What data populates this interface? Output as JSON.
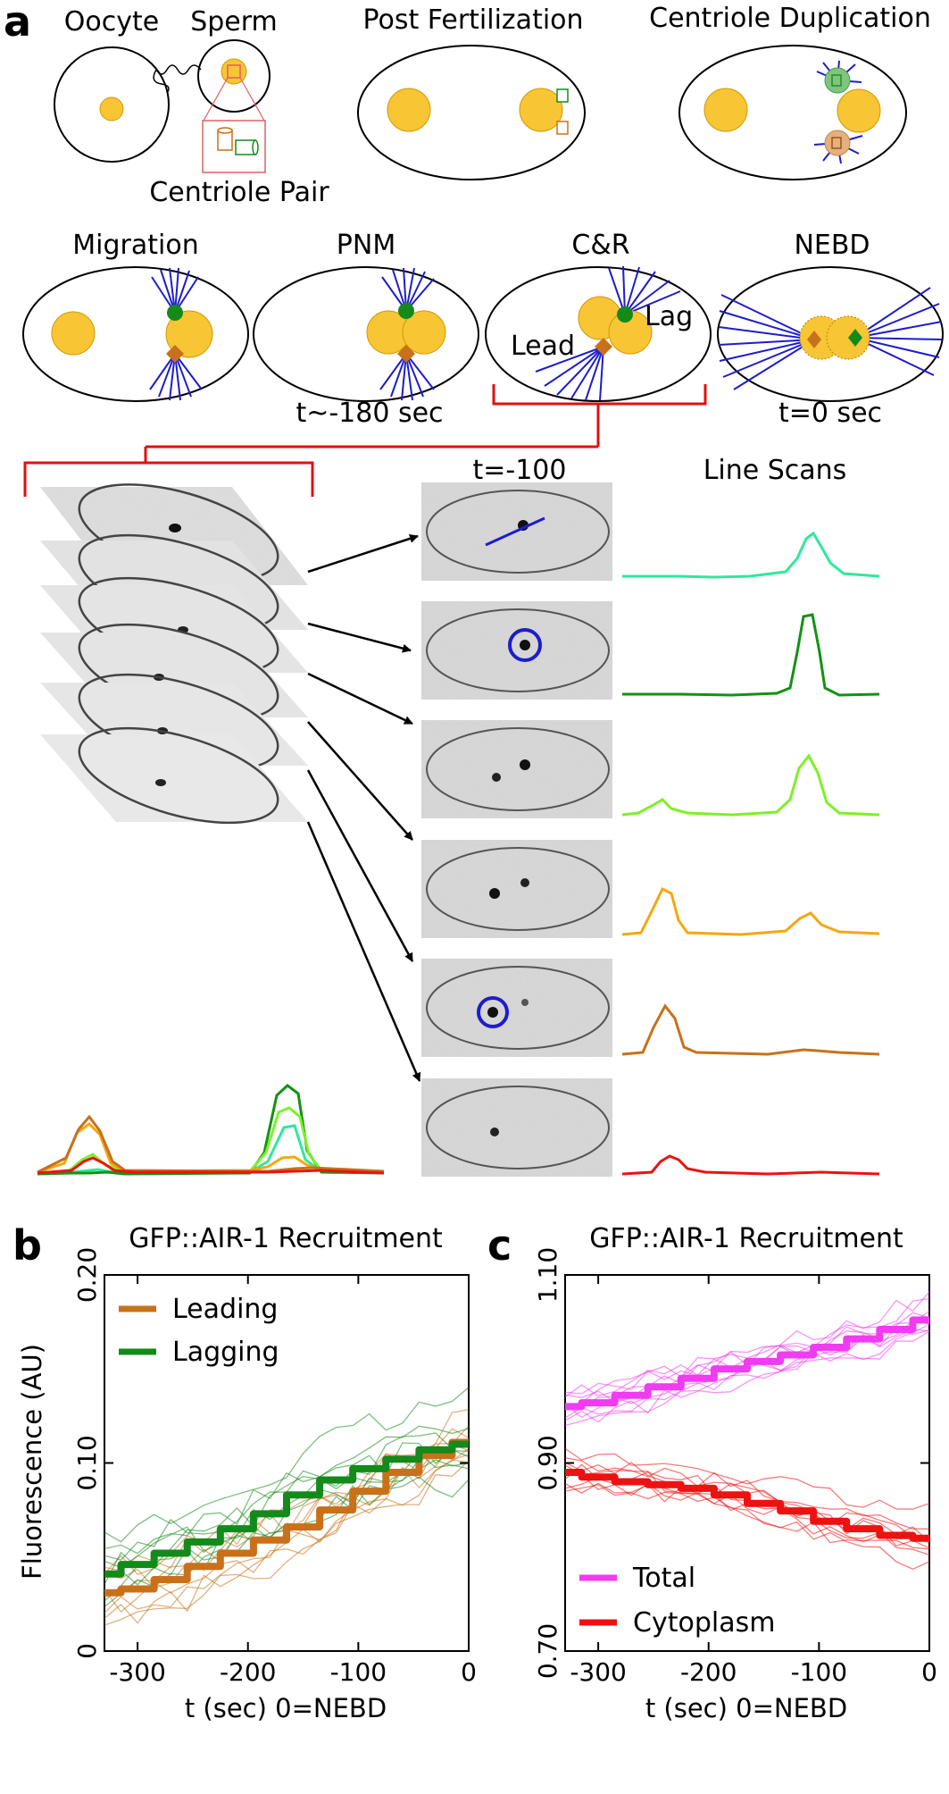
{
  "panel_a": {
    "letter": "a",
    "stages_row1": [
      "Oocyte",
      "Sperm",
      "Post Fertilization",
      "Centriole Duplication"
    ],
    "centriole_pair_label": "Centriole Pair",
    "stages_row2": [
      "Migration",
      "PNM",
      "C&R",
      "NEBD"
    ],
    "lead_label": "Lead",
    "lag_label": "Lag",
    "pnm_time": "t~-180 sec",
    "nebd_time": "t=0 sec",
    "frame_time": "t=-100",
    "line_scans_title": "Line Scans",
    "colors": {
      "yolk": "#f8c535",
      "centrosome_lead": "#c8711a",
      "centrosome_lag": "#138a1a",
      "microtubule": "#1d1dcc",
      "bracket": "#e01010"
    }
  },
  "chart_data": [
    {
      "panel": "b",
      "type": "line",
      "title": "GFP::AIR-1 Recruitment",
      "xlabel": "t (sec) 0=NEBD",
      "ylabel": "Fluorescence (AU)",
      "xlim": [
        -330,
        0
      ],
      "ylim": [
        0,
        0.2
      ],
      "xticks": [
        "-300",
        "-200",
        "-100",
        "0"
      ],
      "yticks": [
        "0",
        "0.10",
        "0.20"
      ],
      "legend_position": "top-left",
      "x": [
        -330,
        -300,
        -270,
        -240,
        -210,
        -180,
        -150,
        -120,
        -90,
        -60,
        -30,
        0
      ],
      "series": [
        {
          "name": "Leading",
          "color": "#c8711a",
          "values": [
            0.031,
            0.033,
            0.038,
            0.045,
            0.052,
            0.059,
            0.066,
            0.075,
            0.085,
            0.095,
            0.104,
            0.111
          ]
        },
        {
          "name": "Lagging",
          "color": "#138a1a",
          "values": [
            0.041,
            0.046,
            0.052,
            0.058,
            0.065,
            0.073,
            0.083,
            0.091,
            0.097,
            0.102,
            0.107,
            0.11
          ]
        }
      ]
    },
    {
      "panel": "c",
      "type": "line",
      "title": "GFP::AIR-1 Recruitment",
      "xlabel": "t (sec) 0=NEBD",
      "ylabel": "",
      "xlim": [
        -330,
        0
      ],
      "ylim": [
        0.7,
        1.1
      ],
      "xticks": [
        "-300",
        "-200",
        "-100",
        "0"
      ],
      "yticks": [
        "0.70",
        "0.90",
        "1.10"
      ],
      "legend_position": "bottom-left",
      "x": [
        -330,
        -300,
        -270,
        -240,
        -210,
        -180,
        -150,
        -120,
        -90,
        -60,
        -30,
        0
      ],
      "series": [
        {
          "name": "Total",
          "color": "#f03cf0",
          "values": [
            0.96,
            0.964,
            0.972,
            0.981,
            0.99,
            1.0,
            1.008,
            1.015,
            1.023,
            1.032,
            1.042,
            1.052
          ]
        },
        {
          "name": "Cytoplasm",
          "color": "#ee1111",
          "values": [
            0.89,
            0.885,
            0.88,
            0.877,
            0.873,
            0.866,
            0.857,
            0.849,
            0.838,
            0.83,
            0.823,
            0.82
          ]
        }
      ]
    }
  ]
}
